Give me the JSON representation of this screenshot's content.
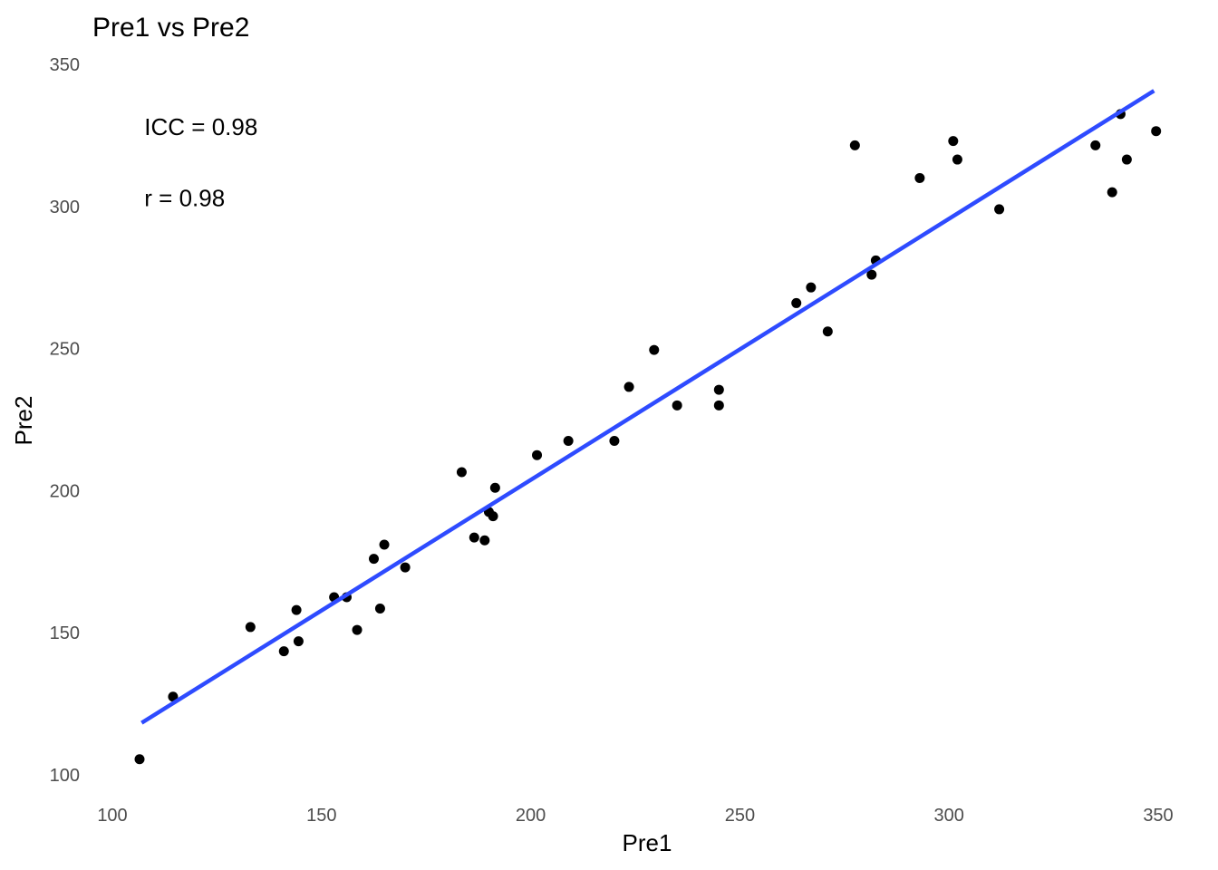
{
  "chart_data": {
    "type": "scatter",
    "title": "Pre1 vs Pre2",
    "xlabel": "Pre1",
    "ylabel": "Pre2",
    "xlim": [
      100,
      350
    ],
    "ylim": [
      100,
      350
    ],
    "xticks": [
      100,
      150,
      200,
      250,
      300,
      350
    ],
    "yticks": [
      100,
      150,
      200,
      250,
      300,
      350
    ],
    "grid": false,
    "annotations": [
      {
        "text": "ICC = 0.98",
        "x": 107,
        "y": 328
      },
      {
        "text": "r = 0.98",
        "x": 107,
        "y": 303
      }
    ],
    "regression_line": {
      "color": "#2e4bff",
      "x": [
        107,
        349
      ],
      "y": [
        118.3,
        340.7
      ]
    },
    "points": {
      "color": "#000000",
      "x": [
        106.5,
        114.5,
        133,
        141,
        144,
        144.5,
        153,
        156,
        158.5,
        162.5,
        164,
        165,
        170,
        183.5,
        186.5,
        189,
        190,
        191,
        191.5,
        201.5,
        209,
        220,
        223.5,
        229.5,
        235,
        245,
        245,
        263.5,
        267,
        271,
        277.5,
        281.5,
        282.5,
        293,
        301,
        302,
        312,
        335,
        339,
        341,
        342.5,
        349.5
      ],
      "y": [
        105.5,
        127.5,
        152,
        143.5,
        158,
        147,
        162.5,
        162.5,
        151,
        176,
        158.5,
        181,
        173,
        206.5,
        183.5,
        182.5,
        192.5,
        191,
        201,
        212.5,
        217.5,
        217.5,
        236.5,
        249.5,
        230,
        230,
        235.5,
        266,
        271.5,
        256,
        321.5,
        276,
        281,
        310,
        323,
        316.5,
        299,
        321.5,
        305,
        332.5,
        316.5,
        326.5
      ]
    }
  }
}
